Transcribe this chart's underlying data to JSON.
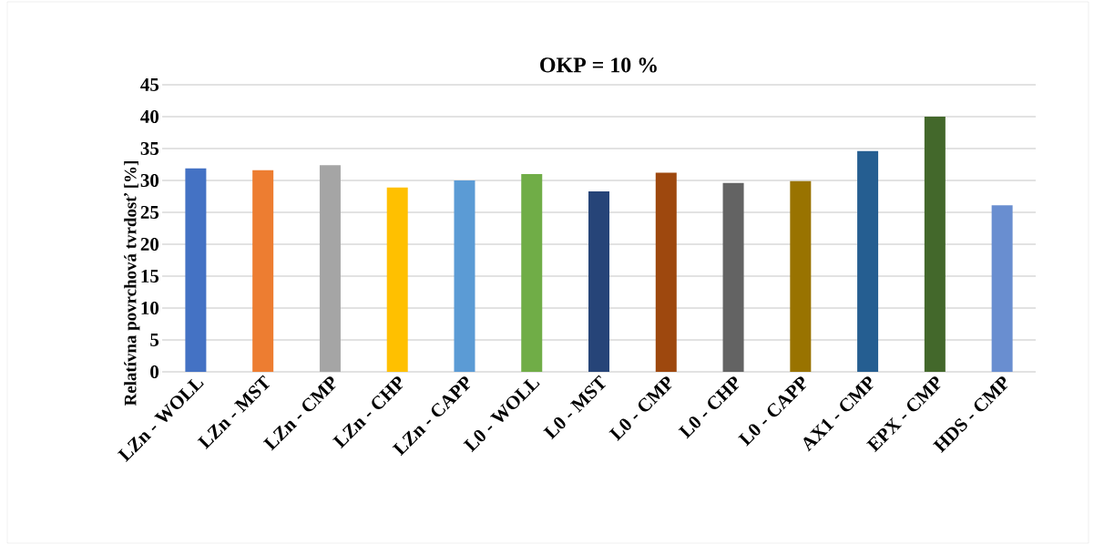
{
  "chart_data": {
    "type": "bar",
    "title": "OKP = 10 %",
    "ylabel": "Relatívna povrchová  tvrdosť [%]",
    "categories": [
      "LZn - WOLL",
      "LZn - MST",
      "LZn - CMP",
      "LZn - CHP",
      "LZn - CAPP",
      "L0 - WOLL",
      "L0 - MST",
      "L0 - CMP",
      "L0 - CHP",
      "L0 - CAPP",
      "AX1 - CMP",
      "EPX - CMP",
      "HDS - CMP"
    ],
    "values": [
      31.9,
      31.6,
      32.4,
      28.9,
      30.0,
      31.0,
      28.3,
      31.2,
      29.6,
      29.9,
      34.6,
      40.0,
      26.1
    ],
    "colors": [
      "#4472c4",
      "#ed7d31",
      "#a5a5a5",
      "#ffc000",
      "#5b9bd5",
      "#70ad47",
      "#264478",
      "#9e480e",
      "#636363",
      "#997300",
      "#255e91",
      "#43682b",
      "#698ed0"
    ],
    "ylim": [
      0,
      45
    ],
    "yticks": [
      0,
      5,
      10,
      15,
      20,
      25,
      30,
      35,
      40,
      45
    ],
    "grid": "y"
  }
}
